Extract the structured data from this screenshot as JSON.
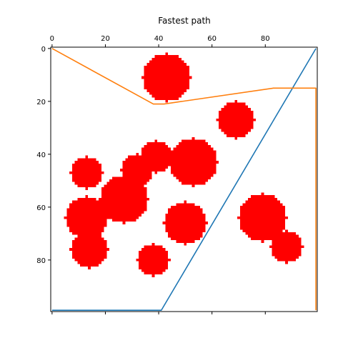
{
  "chart_data": {
    "type": "line",
    "title": "Fastest path",
    "xlabel": "",
    "ylabel": "",
    "x_axis_position": "top",
    "y_axis_inverted": true,
    "xlim": [
      -0.5,
      99.5
    ],
    "ylim": [
      99.5,
      -0.5
    ],
    "x_ticks": [
      0,
      20,
      40,
      60,
      80
    ],
    "y_ticks": [
      0,
      20,
      40,
      60,
      80
    ],
    "grid": false,
    "obstacle_color": "#ff0000",
    "obstacles": [
      {
        "cx": 43,
        "cy": 11,
        "r": 9
      },
      {
        "cx": 69,
        "cy": 27,
        "r": 7
      },
      {
        "cx": 53,
        "cy": 43,
        "r": 9
      },
      {
        "cx": 39,
        "cy": 41,
        "r": 6
      },
      {
        "cx": 32,
        "cy": 46,
        "r": 6
      },
      {
        "cx": 13,
        "cy": 47,
        "r": 6
      },
      {
        "cx": 27,
        "cy": 57,
        "r": 9
      },
      {
        "cx": 13,
        "cy": 64,
        "r": 8
      },
      {
        "cx": 50,
        "cy": 66,
        "r": 8
      },
      {
        "cx": 79,
        "cy": 64,
        "r": 9
      },
      {
        "cx": 88,
        "cy": 75,
        "r": 6
      },
      {
        "cx": 14,
        "cy": 76,
        "r": 7
      },
      {
        "cx": 38,
        "cy": 80,
        "r": 6
      }
    ],
    "series": [
      {
        "color": "#1f77b4",
        "x": [
          0,
          41,
          99
        ],
        "y": [
          99,
          99,
          0
        ]
      },
      {
        "color": "#ff7f0e",
        "x": [
          0,
          38,
          42,
          83,
          99,
          99
        ],
        "y": [
          0,
          21,
          21,
          15,
          15,
          99
        ]
      }
    ]
  }
}
